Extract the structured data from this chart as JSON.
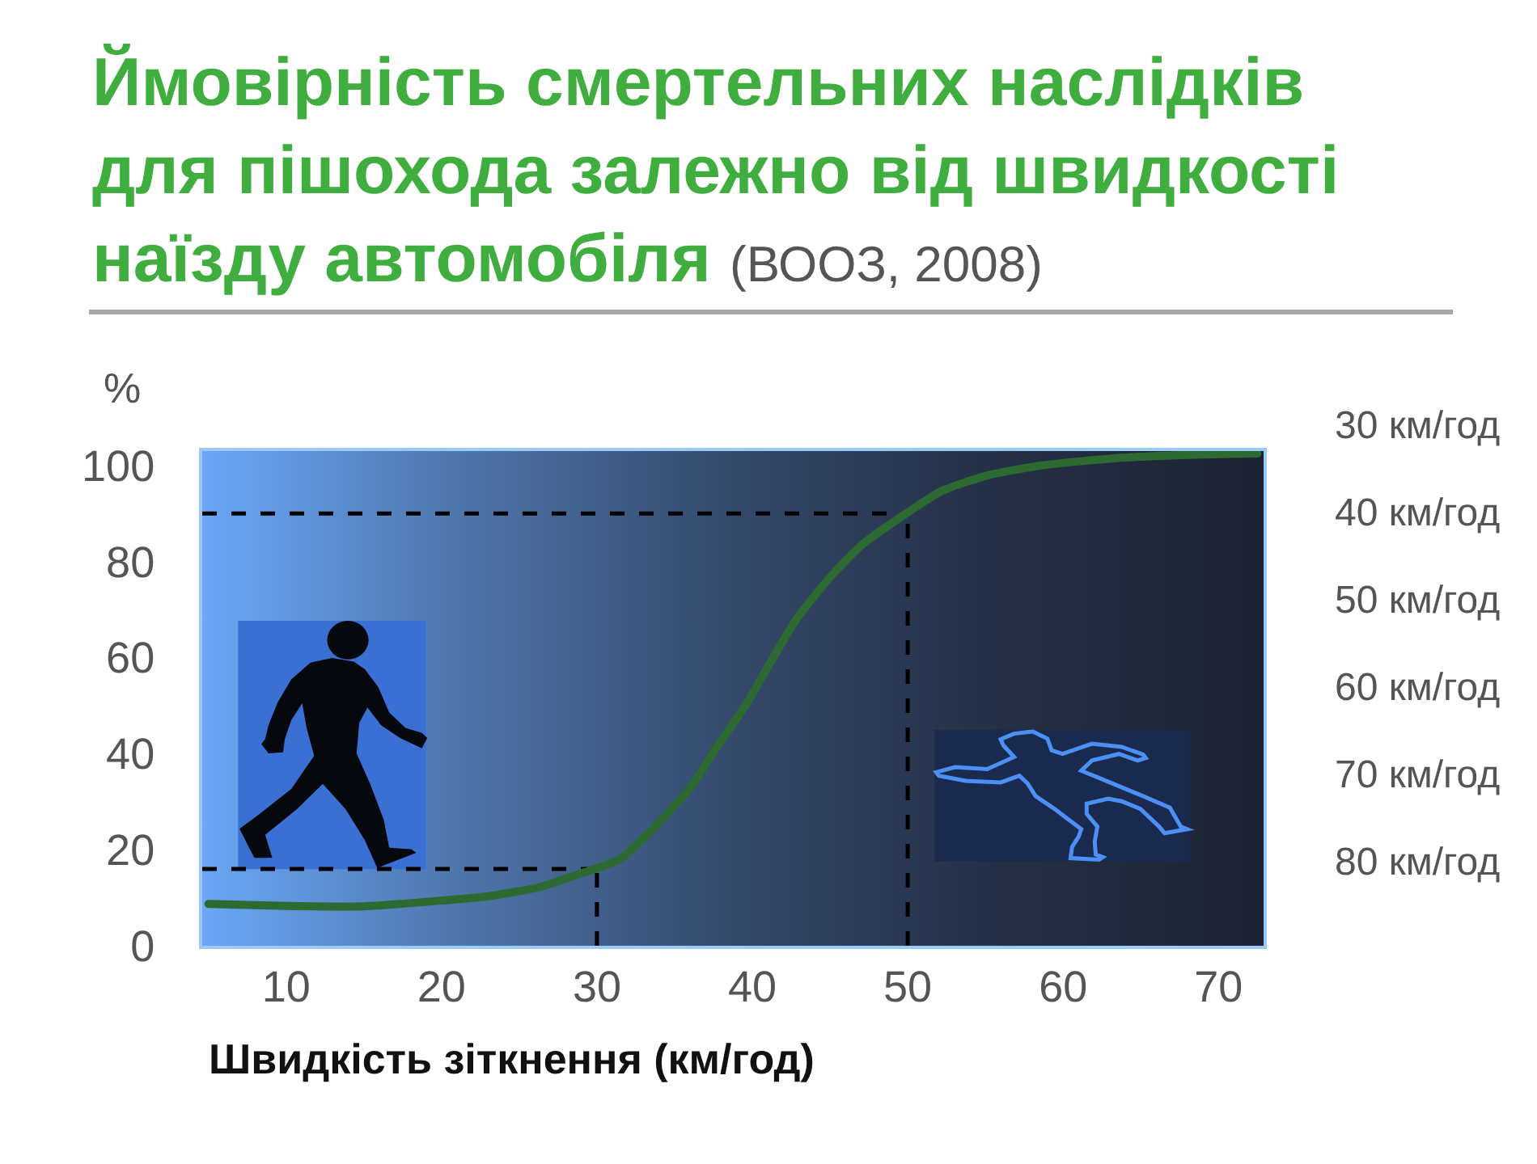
{
  "chart_data": {
    "type": "line",
    "title": "Ймовірність смертельних наслідків для пішохода залежно від швидкості наїзду автомобіля (ВООЗ, 2008)",
    "xlabel": "Швидкість зіткнення (км/год)",
    "ylabel": "%",
    "annotations": [
      "30 км/год",
      "40 км/год",
      "50 км/год",
      "60 км/год",
      "70 км/год",
      "80 км/год"
    ],
    "x": [
      5,
      10,
      15,
      20,
      23,
      26.3,
      28,
      29.2,
      31.5,
      32.7,
      33.9,
      36,
      37.7,
      39.5,
      41.2,
      42.9,
      45,
      47.1,
      49.9,
      52.2,
      55.1,
      58.6,
      63.8,
      69,
      72.5
    ],
    "series": [
      {
        "color": "#2d6a31",
        "values": [
          8.7,
          8.3,
          8.2,
          9.4,
          10.3,
          12.2,
          14,
          15.3,
          18,
          21.5,
          25.4,
          32.8,
          41.3,
          49.7,
          59.2,
          68.3,
          76.7,
          83.6,
          90,
          94.7,
          97.9,
          100,
          101.6,
          102.3,
          102.5
        ]
      }
    ],
    "xlim": [
      4.6,
      72.9
    ],
    "ylim": [
      0,
      103
    ],
    "xticks": [
      10,
      20,
      30,
      40,
      50,
      60,
      70
    ],
    "yticks": [
      0,
      20,
      40,
      60,
      80,
      100
    ],
    "ref_lines": [
      {
        "axis": "y",
        "value": 90,
        "color": "#000000",
        "line_style": "dashed"
      },
      {
        "axis": "x",
        "value": 50,
        "color": "#000000",
        "line_style": "dashed"
      },
      {
        "axis": "y",
        "value": 16,
        "color": "#000000",
        "line_style": "dashed"
      },
      {
        "axis": "x",
        "value": 30,
        "color": "#000000",
        "line_style": "dashed"
      }
    ]
  }
}
